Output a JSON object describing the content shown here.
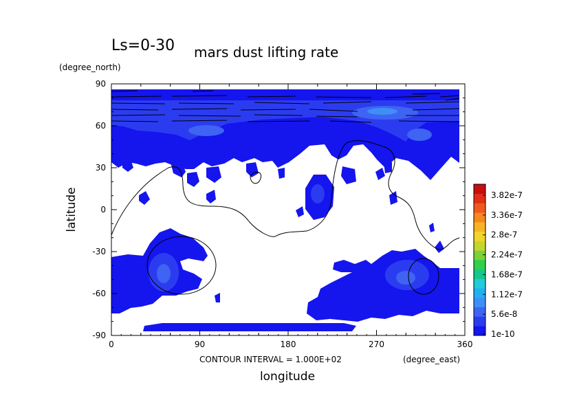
{
  "title": {
    "prefix": "Ls=0-30",
    "main": "mars dust lifting rate"
  },
  "contour_note": "CONTOUR INTERVAL = 1.000E+02",
  "chart_data": {
    "type": "heatmap",
    "title": "Ls=0-30 mars dust lifting rate",
    "xlabel": "longitude",
    "ylabel": "latitude",
    "x_units": "(degree_east)",
    "y_units": "(degree_north)",
    "xlim": [
      0,
      360
    ],
    "ylim": [
      -90,
      90
    ],
    "x_ticks": [
      "0",
      "90",
      "180",
      "270",
      "360"
    ],
    "y_ticks": [
      "90",
      "60",
      "30",
      "0",
      "-30",
      "-60",
      "-90"
    ],
    "colorbar": {
      "labels": [
        "3.82e-7",
        "3.36e-7",
        "2.8e-7",
        "2.24e-7",
        "1.68e-7",
        "1.12e-7",
        "5.6e-8",
        "1e-10"
      ],
      "colors": [
        "#1515ee",
        "#2b3cf0",
        "#3f63f2",
        "#3d8ff6",
        "#1fb0f3",
        "#21ccd9",
        "#14c78c",
        "#2fd04b",
        "#7ad238",
        "#c5d52f",
        "#f0d52a",
        "#f9b225",
        "#f7871f",
        "#ef5a1c",
        "#e02f17",
        "#c80d10"
      ]
    },
    "regions": [
      {
        "name": "north polar band",
        "lon": [
          0,
          357
        ],
        "lat": [
          46,
          86
        ],
        "level": "low"
      },
      {
        "name": "north polar maximum",
        "lon": [
          250,
          290
        ],
        "lat": [
          64,
          72
        ],
        "level": "moderate"
      },
      {
        "name": "southern mid-latitudes west",
        "lon": [
          0,
          100
        ],
        "lat": [
          -75,
          -25
        ],
        "level": "low"
      },
      {
        "name": "southern mid-latitudes east",
        "lon": [
          200,
          357
        ],
        "lat": [
          -75,
          -35
        ],
        "level": "low"
      },
      {
        "name": "south polar strip",
        "lon": [
          30,
          250
        ],
        "lat": [
          -87,
          -82
        ],
        "level": "low"
      }
    ]
  }
}
